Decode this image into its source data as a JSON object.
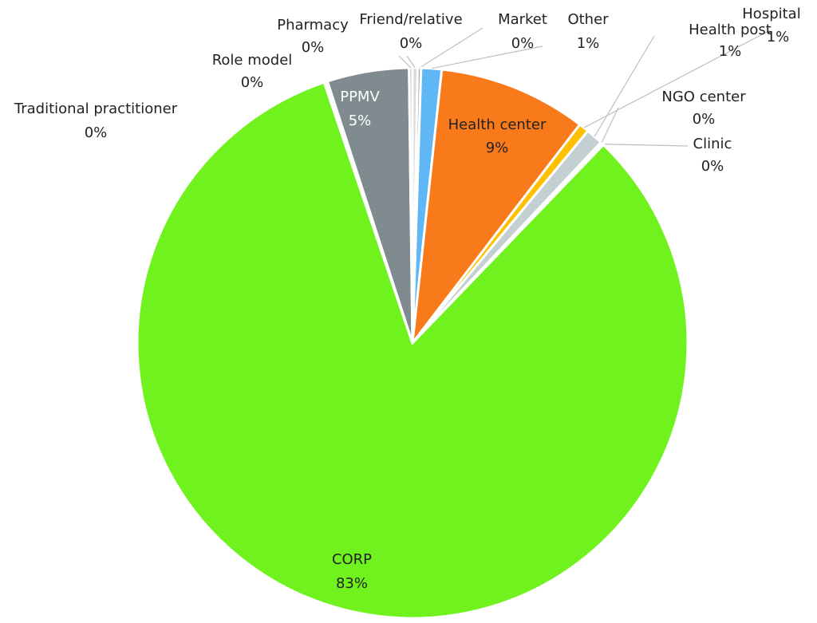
{
  "chart_data": {
    "type": "pie",
    "categories": [
      "Friend/relative",
      "Market",
      "Other",
      "Health center",
      "Hospital",
      "Health post",
      "NGO center",
      "Clinic",
      "CORP",
      "Traditional practitioner",
      "Role model",
      "PPMV",
      "Pharmacy"
    ],
    "values": [
      0.3,
      0.2,
      1.2,
      8.7,
      0.6,
      1.0,
      0.1,
      0.1,
      82.6,
      0.1,
      0.1,
      4.8,
      0.2
    ],
    "value_labels": [
      "0%",
      "0%",
      "1%",
      "9%",
      "1%",
      "1%",
      "0%",
      "0%",
      "83%",
      "0%",
      "0%",
      "5%",
      "0%"
    ],
    "colors": [
      "#d9d9d9",
      "#a5a5a5",
      "#5fb8f5",
      "#f97a1b",
      "#ffc000",
      "#c3cfd1",
      "#4472c4",
      "#bfbfbf",
      "#70f21f",
      "#2e75b6",
      "#997300",
      "#7f8b8f",
      "#cccccc"
    ]
  }
}
